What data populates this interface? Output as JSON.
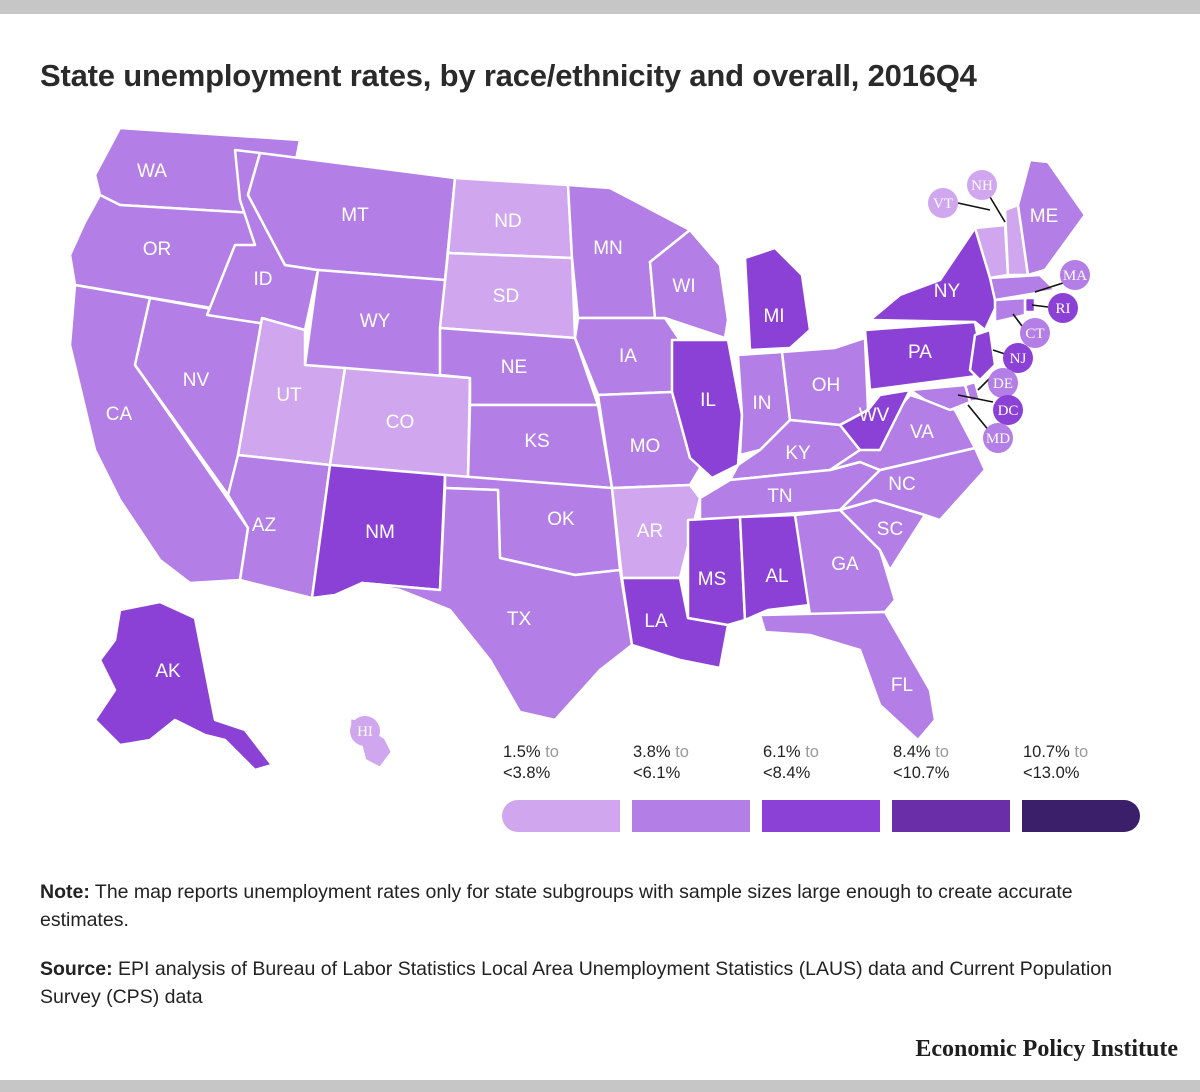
{
  "title": "State unemployment rates, by race/ethnicity and overall, 2016Q4",
  "colors": {
    "bin1": "#d0a7ee",
    "bin2": "#b37ee5",
    "bin3": "#8b41d6",
    "bin4": "#6a2fa8",
    "bin5": "#3b1f6a"
  },
  "legend": [
    {
      "from": "1.5%",
      "to_word": "to",
      "upper": "<3.8%",
      "color": "#d0a7ee"
    },
    {
      "from": "3.8%",
      "to_word": "to",
      "upper": "<6.1%",
      "color": "#b37ee5"
    },
    {
      "from": "6.1%",
      "to_word": "to",
      "upper": "<8.4%",
      "color": "#8b41d6"
    },
    {
      "from": "8.4%",
      "to_word": "to",
      "upper": "<10.7%",
      "color": "#6a2fa8"
    },
    {
      "from": "10.7%",
      "to_word": "to",
      "upper": "<13.0%",
      "color": "#3b1f6a"
    }
  ],
  "states": {
    "WA": "WA",
    "OR": "OR",
    "CA": "CA",
    "NV": "NV",
    "ID": "ID",
    "MT": "MT",
    "WY": "WY",
    "UT": "UT",
    "CO": "CO",
    "AZ": "AZ",
    "NM": "NM",
    "ND": "ND",
    "SD": "SD",
    "NE": "NE",
    "KS": "KS",
    "OK": "OK",
    "TX": "TX",
    "MN": "MN",
    "IA": "IA",
    "MO": "MO",
    "AR": "AR",
    "LA": "LA",
    "WI": "WI",
    "IL": "IL",
    "MI": "MI",
    "IN": "IN",
    "OH": "OH",
    "KY": "KY",
    "TN": "TN",
    "MS": "MS",
    "AL": "AL",
    "GA": "GA",
    "FL": "FL",
    "SC": "SC",
    "NC": "NC",
    "VA": "VA",
    "WV": "WV",
    "PA": "PA",
    "NY": "NY",
    "ME": "ME",
    "AK": "AK",
    "HI": "HI",
    "VT": "VT",
    "NH": "NH",
    "MA": "MA",
    "RI": "RI",
    "CT": "CT",
    "NJ": "NJ",
    "DE": "DE",
    "DC": "DC",
    "MD": "MD"
  },
  "note": {
    "label": "Note:",
    "text": "The map reports unemployment rates only for state subgroups with sample sizes large enough to create accurate estimates."
  },
  "source": {
    "label": "Source:",
    "text": "EPI analysis of Bureau of Labor Statistics Local Area Unemployment Statistics (LAUS) data and Current Population Survey (CPS) data"
  },
  "brand": "Economic Policy Institute"
}
